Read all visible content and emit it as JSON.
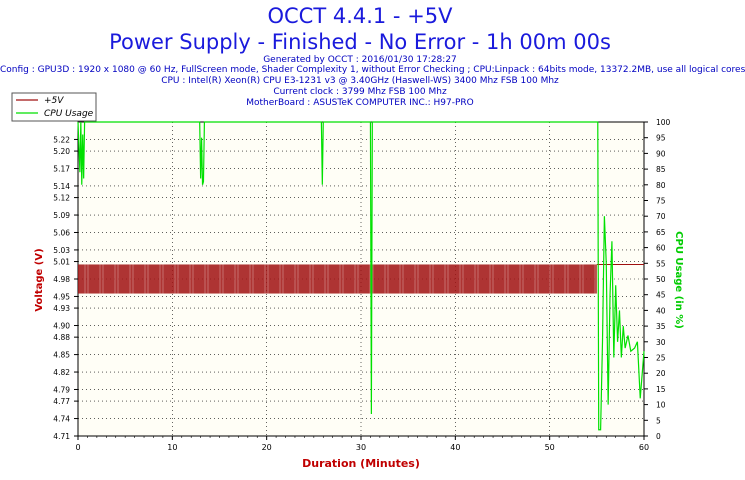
{
  "header": {
    "title": "OCCT 4.4.1 - +5V",
    "subtitle": "Power Supply - Finished - No Error - 1h 00m 00s",
    "info_lines": [
      "Generated by OCCT : 2016/01/30 17:28:27",
      "Config : GPU3D : 1920 x 1080 @ 60 Hz, FullScreen mode, Shader Complexity 1, without Error Checking ; CPU:Linpack : 64bits mode, 13372.2MB, use all logical cores",
      "CPU : Intel(R) Xeon(R) CPU E3-1231 v3 @ 3.40GHz (Haswell-WS) 3400 Mhz FSB 100 Mhz",
      "Current clock : 3799 Mhz FSB 100 Mhz",
      "MotherBoard : ASUSTeK COMPUTER INC.: H97-PRO"
    ]
  },
  "colors": {
    "voltage": "#a01010",
    "cpu": "#00e000",
    "title": "#1a1adc",
    "axis_label_left": "#c00000",
    "axis_label_right": "#00cc00",
    "x_label": "#c00000"
  },
  "chart_data": {
    "type": "line",
    "xlabel": "Duration (Minutes)",
    "ylabel": "Voltage (V)",
    "y2label": "CPU Usage (in %)",
    "xlim": [
      0,
      60
    ],
    "ylim": [
      4.71,
      5.25
    ],
    "y2lim": [
      0,
      100
    ],
    "x_ticks": [
      "0",
      "10",
      "20",
      "30",
      "40",
      "50",
      "60"
    ],
    "y_ticks": [
      "4.71",
      "4.74",
      "4.77",
      "4.79",
      "4.82",
      "4.85",
      "4.88",
      "4.90",
      "4.93",
      "4.95",
      "4.98",
      "5.01",
      "5.03",
      "5.06",
      "5.09",
      "5.12",
      "5.14",
      "5.17",
      "5.20",
      "5.22"
    ],
    "y2_ticks": [
      "0",
      "5",
      "10",
      "15",
      "20",
      "25",
      "30",
      "35",
      "40",
      "45",
      "50",
      "55",
      "60",
      "65",
      "70",
      "75",
      "80",
      "85",
      "90",
      "95",
      "100"
    ],
    "grid": true,
    "legend": "top-left",
    "series": [
      {
        "name": "+5V",
        "axis": "left",
        "style": "band",
        "x_range": [
          0,
          55
        ],
        "low": 4.955,
        "high": 5.005,
        "after": {
          "x": [
            55,
            60
          ],
          "y": [
            5.005,
            5.005
          ]
        }
      },
      {
        "name": "CPU Usage",
        "axis": "right",
        "x": [
          0,
          0.2,
          0.3,
          0.4,
          0.5,
          0.6,
          0.7,
          12.9,
          13.0,
          13.1,
          13.2,
          13.3,
          13.4,
          25.8,
          25.9,
          26.0,
          31.0,
          31.1,
          31.2,
          55.1,
          55.2,
          55.4,
          55.6,
          55.8,
          56.0,
          56.2,
          56.4,
          56.6,
          56.8,
          57.0,
          57.2,
          57.4,
          57.6,
          57.8,
          58.0,
          58.3,
          58.6,
          59.0,
          59.3,
          59.6,
          60.0
        ],
        "y": [
          100,
          84,
          100,
          80,
          96,
          82,
          100,
          100,
          82,
          95,
          80,
          81,
          100,
          100,
          80,
          100,
          100,
          7,
          100,
          100,
          2,
          2,
          30,
          70,
          55,
          10,
          45,
          62,
          25,
          48,
          30,
          40,
          25,
          35,
          28,
          32,
          27,
          28,
          30,
          12,
          27
        ]
      }
    ]
  }
}
